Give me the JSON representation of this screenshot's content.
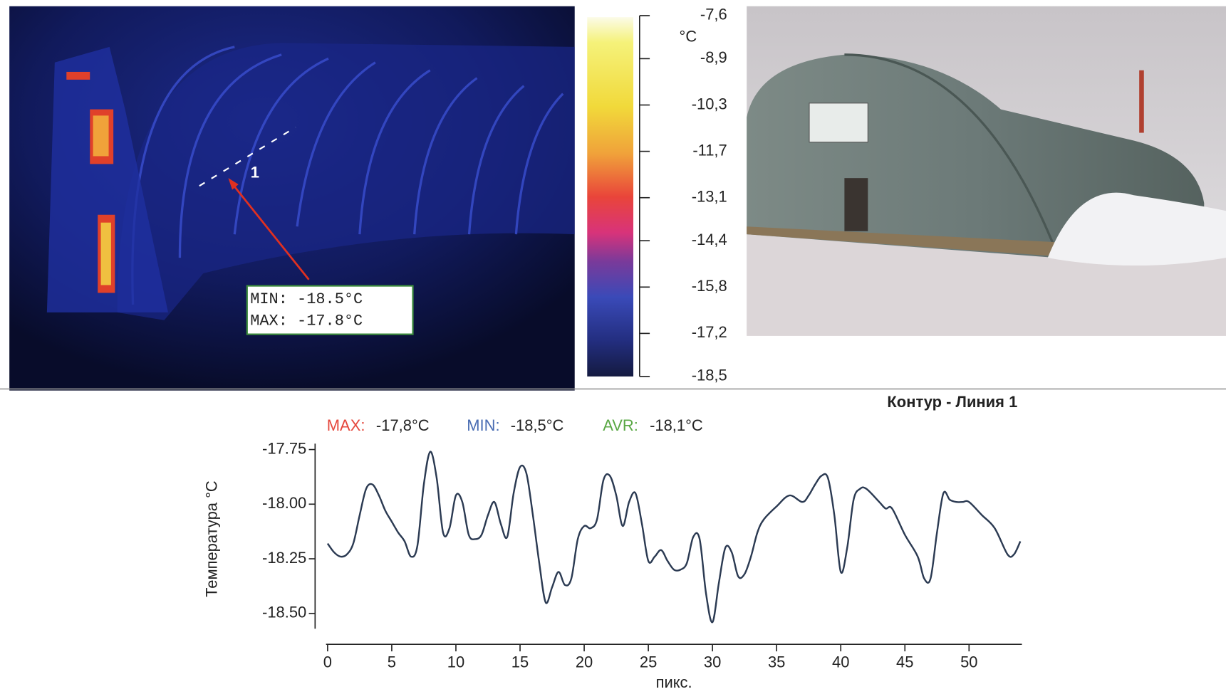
{
  "thermal_image": {
    "marker": "1",
    "readout": [
      "MIN: -18.5°C",
      "MAX: -17.8°C"
    ]
  },
  "color_scale": {
    "unit": "°C",
    "ticks": [
      {
        "value": -7.6,
        "label": "-7,6"
      },
      {
        "value": -8.9,
        "label": "-8,9"
      },
      {
        "value": -10.3,
        "label": "-10,3"
      },
      {
        "value": -11.7,
        "label": "-11,7"
      },
      {
        "value": -13.1,
        "label": "-13,1"
      },
      {
        "value": -14.4,
        "label": "-14,4"
      },
      {
        "value": -15.8,
        "label": "-15,8"
      },
      {
        "value": -17.2,
        "label": "-17,2"
      },
      {
        "value": -18.5,
        "label": "-18,5"
      }
    ]
  },
  "chart_data": {
    "type": "line",
    "title": "Контур - Линия 1",
    "stats": [
      {
        "label": "MAX:",
        "value": "-17,8°C",
        "color": "#e5473c"
      },
      {
        "label": "MIN:",
        "value": "-18,5°C",
        "color": "#4a6db3"
      },
      {
        "label": "AVR:",
        "value": "-18,1°C",
        "color": "#5aa845"
      }
    ],
    "y_label": "Температура °C",
    "x_label": "пикс.",
    "color": "#2b3a52",
    "x": [
      0,
      0.5,
      1,
      1.5,
      2,
      2.5,
      3,
      3.5,
      4,
      4.5,
      5,
      5.5,
      6,
      6.5,
      7,
      7.5,
      8,
      8.5,
      9,
      9.5,
      10,
      10.5,
      11,
      11.5,
      12,
      12.5,
      13,
      13.5,
      14,
      14.5,
      15,
      15.5,
      16,
      16.5,
      17,
      17.5,
      18,
      18.5,
      19,
      19.5,
      20,
      20.5,
      21,
      21.5,
      22,
      22.5,
      23,
      23.5,
      24,
      24.5,
      25,
      25.5,
      26,
      26.5,
      27,
      27.5,
      28,
      28.5,
      29,
      29.5,
      30,
      30.5,
      31,
      31.5,
      32,
      32.5,
      33,
      33.5,
      34,
      35,
      36,
      37,
      37.5,
      38,
      38.5,
      39,
      39.5,
      40,
      40.5,
      41,
      41.5,
      42,
      43,
      43.5,
      44,
      45,
      46,
      46.5,
      47,
      47.5,
      48,
      48.5,
      49,
      49.5,
      50,
      51,
      52,
      53,
      53.5,
      54
    ],
    "values": [
      -18.18,
      -18.22,
      -18.24,
      -18.23,
      -18.18,
      -18.05,
      -17.93,
      -17.91,
      -17.96,
      -18.03,
      -18.08,
      -18.13,
      -18.17,
      -18.24,
      -18.19,
      -17.91,
      -17.76,
      -17.88,
      -18.13,
      -18.11,
      -17.96,
      -17.99,
      -18.14,
      -18.16,
      -18.14,
      -18.05,
      -17.99,
      -18.09,
      -18.15,
      -17.95,
      -17.83,
      -17.86,
      -18.05,
      -18.27,
      -18.45,
      -18.38,
      -18.31,
      -18.37,
      -18.34,
      -18.16,
      -18.1,
      -18.11,
      -18.07,
      -17.89,
      -17.87,
      -17.96,
      -18.1,
      -17.99,
      -17.95,
      -18.09,
      -18.26,
      -18.24,
      -18.21,
      -18.26,
      -18.3,
      -18.3,
      -18.27,
      -18.15,
      -18.16,
      -18.41,
      -18.54,
      -18.36,
      -18.2,
      -18.22,
      -18.33,
      -18.32,
      -18.24,
      -18.13,
      -18.07,
      -18.01,
      -17.96,
      -17.99,
      -17.96,
      -17.91,
      -17.87,
      -17.88,
      -18.05,
      -18.31,
      -18.2,
      -17.98,
      -17.93,
      -17.93,
      -17.99,
      -18.02,
      -18.02,
      -18.14,
      -18.24,
      -18.34,
      -18.34,
      -18.13,
      -17.95,
      -17.98,
      -17.99,
      -17.99,
      -17.99,
      -18.05,
      -18.11,
      -18.23,
      -18.23,
      -18.17
    ],
    "xlim": [
      0,
      54
    ],
    "ylim": [
      -18.57,
      -17.73
    ],
    "xticks": [
      0,
      5,
      10,
      15,
      20,
      25,
      30,
      35,
      40,
      45,
      50
    ],
    "yticks": [
      -17.75,
      {
        "value": -18,
        "label": "-18.00"
      },
      -18.25,
      {
        "value": -18.5,
        "label": "-18.50"
      }
    ],
    "grid": false
  }
}
